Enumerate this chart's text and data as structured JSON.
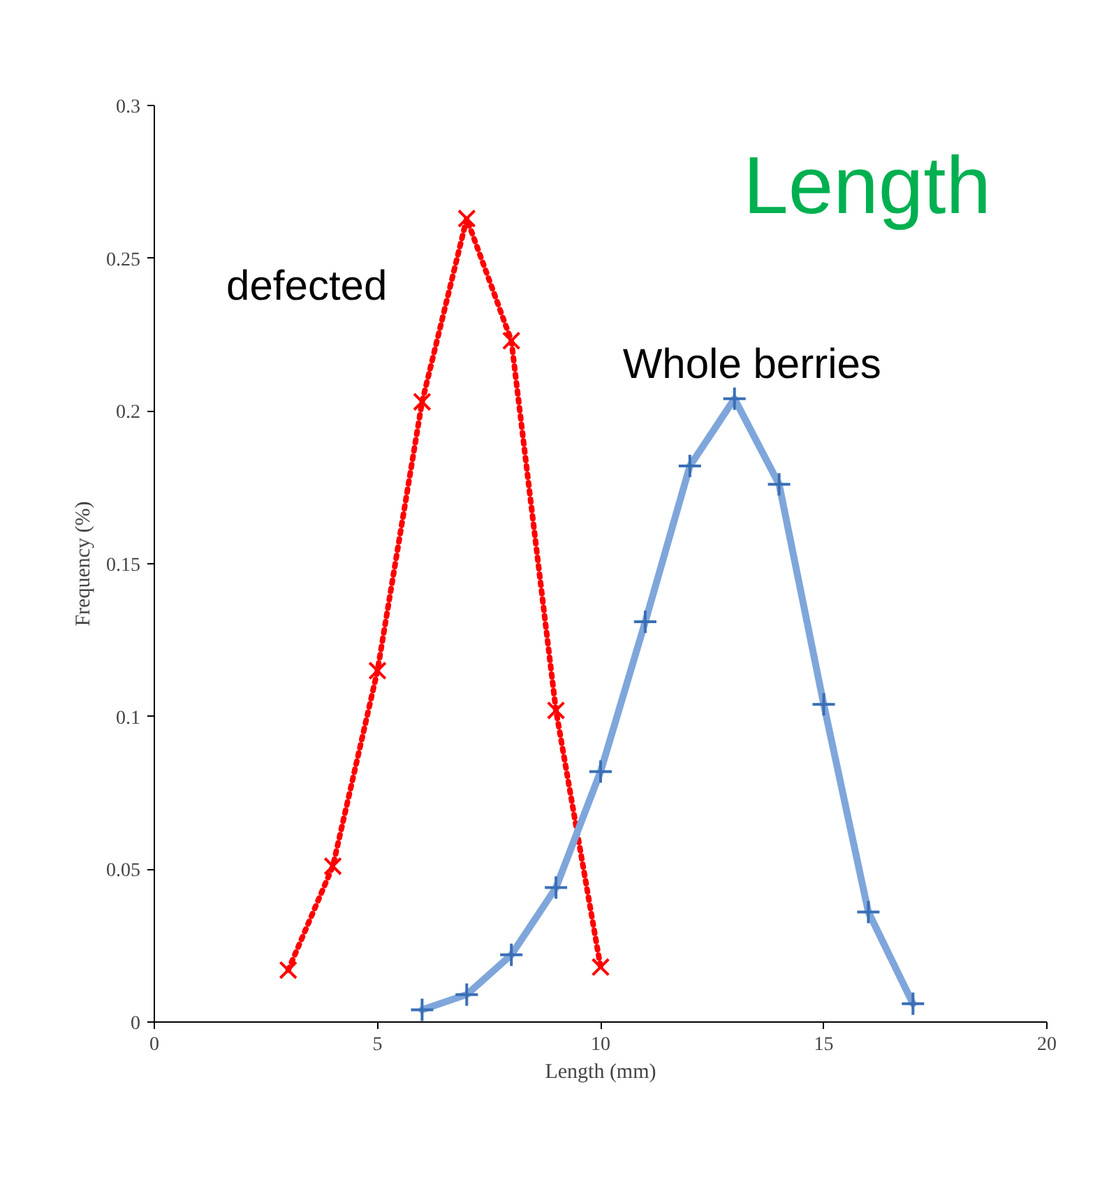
{
  "chart_data": {
    "type": "line",
    "title": "Length",
    "xlabel": "Length (mm)",
    "ylabel": "Frequency (%)",
    "xlim": [
      0,
      20
    ],
    "xticks": [
      0,
      5,
      10,
      15,
      20
    ],
    "ylim": [
      0,
      0.3
    ],
    "yticks": [
      0,
      0.05,
      0.1,
      0.15,
      0.2,
      0.25,
      0.3
    ],
    "grid": false,
    "marker": "cross",
    "series": [
      {
        "name": "defected",
        "color": "#ff0000",
        "line_style": "dotted",
        "x": [
          3,
          4,
          5,
          6,
          7,
          8,
          9,
          10
        ],
        "values": [
          0.017,
          0.051,
          0.115,
          0.203,
          0.263,
          0.223,
          0.102,
          0.018
        ]
      },
      {
        "name": "Whole berries",
        "color": "#7fa6db",
        "line_style": "solid",
        "x": [
          6,
          7,
          8,
          9,
          10,
          11,
          12,
          13,
          14,
          15,
          16,
          17
        ],
        "values": [
          0.004,
          0.009,
          0.022,
          0.044,
          0.082,
          0.131,
          0.182,
          0.204,
          0.176,
          0.104,
          0.036,
          0.006
        ]
      }
    ]
  }
}
